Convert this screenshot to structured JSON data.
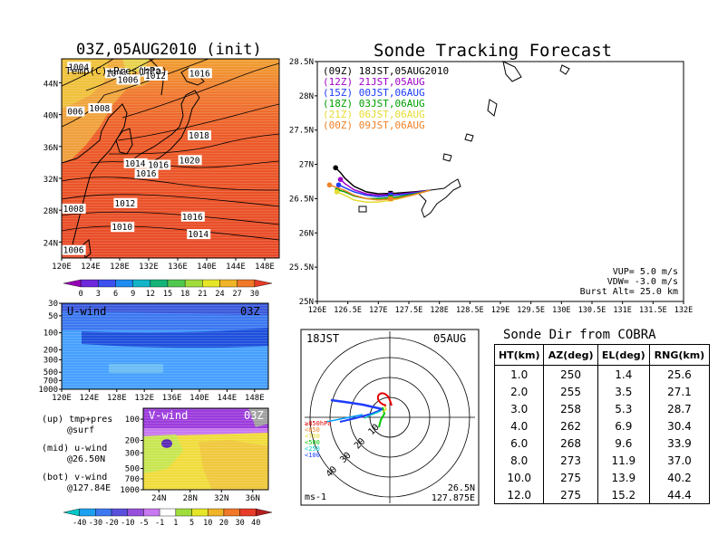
{
  "left_title": "03Z,05AUG2010 (init)",
  "right_title": "Sonde Tracking Forecast",
  "map_panel": {
    "label": "Temp(C)+Pres(hPa)",
    "lat_ticks": [
      "44N",
      "40N",
      "36N",
      "32N",
      "28N",
      "24N"
    ],
    "lon_ticks": [
      "120E",
      "124E",
      "128E",
      "132E",
      "136E",
      "140E",
      "144E",
      "148E"
    ],
    "pressure_labels": [
      {
        "text": "1004",
        "lon": 120.9,
        "lat": 45.6
      },
      {
        "text": "1004",
        "lon": 126.1,
        "lat": 44.8
      },
      {
        "text": "1006",
        "lon": 127.7,
        "lat": 44.0
      },
      {
        "text": "1010",
        "lon": 130.8,
        "lat": 45.0
      },
      {
        "text": "1012",
        "lon": 131.5,
        "lat": 44.5
      },
      {
        "text": "1016",
        "lon": 137.6,
        "lat": 44.8
      },
      {
        "text": "006",
        "lon": 120.8,
        "lat": 40.0
      },
      {
        "text": "1008",
        "lon": 123.8,
        "lat": 40.4
      },
      {
        "text": "1018",
        "lon": 137.5,
        "lat": 37.0
      },
      {
        "text": "1014",
        "lon": 128.7,
        "lat": 33.5
      },
      {
        "text": "1016",
        "lon": 131.9,
        "lat": 33.3
      },
      {
        "text": "1020",
        "lon": 136.2,
        "lat": 33.9
      },
      {
        "text": "1016",
        "lon": 130.2,
        "lat": 32.2
      },
      {
        "text": "1012",
        "lon": 127.3,
        "lat": 28.5
      },
      {
        "text": "1008",
        "lon": 120.2,
        "lat": 27.8
      },
      {
        "text": "1010",
        "lon": 126.9,
        "lat": 25.5
      },
      {
        "text": "1016",
        "lon": 136.6,
        "lat": 26.8
      },
      {
        "text": "1014",
        "lon": 137.4,
        "lat": 24.6
      },
      {
        "text": "1006",
        "lon": 120.2,
        "lat": 22.6
      }
    ]
  },
  "temp_colorbar": {
    "ticks": [
      "0",
      "3",
      "6",
      "9",
      "12",
      "15",
      "18",
      "21",
      "24",
      "27",
      "30"
    ]
  },
  "u_panel": {
    "label": "U-wind",
    "time": "03Z",
    "p_ticks": [
      "30",
      "50",
      "100",
      "200",
      "300",
      "500",
      "700",
      "1000"
    ],
    "lon_ticks": [
      "120E",
      "124E",
      "128E",
      "132E",
      "136E",
      "140E",
      "144E",
      "148E"
    ]
  },
  "v_panel": {
    "label": "V-wind",
    "time": "03Z",
    "p_ticks": [
      "100",
      "200",
      "300",
      "500",
      "700",
      "1000"
    ],
    "lat_ticks": [
      "24N",
      "28N",
      "32N",
      "36N"
    ]
  },
  "panel_notes": [
    {
      "line1": "(up) tmp+pres",
      "line2": "@surf"
    },
    {
      "line1": "(mid) u-wind",
      "line2": "@26.50N"
    },
    {
      "line1": "(bot) v-wind",
      "line2": "@127.84E"
    }
  ],
  "wind_colorbar": {
    "ticks": [
      "-40",
      "-30",
      "-20",
      "-10",
      "-5",
      "-1",
      "1",
      "5",
      "10",
      "20",
      "30",
      "40"
    ]
  },
  "track_panel": {
    "lat_ticks": [
      "28.5N",
      "28N",
      "27.5N",
      "27N",
      "26.5N",
      "26N",
      "25.5N",
      "25N"
    ],
    "lon_ticks": [
      "126E",
      "126.5E",
      "127E",
      "127.5E",
      "128E",
      "128.5E",
      "129E",
      "129.5E",
      "130E",
      "130.5E",
      "131E",
      "131.5E",
      "132E"
    ],
    "legend": [
      {
        "text": "(09Z)  18JST,05AUG2010",
        "color": "#000000"
      },
      {
        "text": "(12Z)  21JST,05AUG",
        "color": "#a000c8"
      },
      {
        "text": "(15Z)  00JST,06AUG",
        "color": "#1e3cff"
      },
      {
        "text": "(18Z)  03JST,06AUG",
        "color": "#00a000"
      },
      {
        "text": "(21Z)  06JST,06AUG",
        "color": "#e6dc32"
      },
      {
        "text": "(00Z)  09JST,06AUG",
        "color": "#f08228"
      }
    ],
    "params": [
      "VUP=  5.0  m/s",
      "VDW= -3.0  m/s",
      "Burst Alt=  25.0  km"
    ]
  },
  "polar_panel": {
    "time": "18JST",
    "date": "05AUG",
    "levels": [
      "≥850hPa",
      "<850",
      "<700",
      "<500",
      "<250",
      "<100"
    ],
    "level_colors": [
      "#e60000",
      "#f08228",
      "#e6dc32",
      "#00c800",
      "#00c8c8",
      "#1e3cff"
    ],
    "ring_labels": [
      "10",
      "20",
      "30",
      "40"
    ],
    "unit": "ms-1",
    "location_lat": "26.5N",
    "location_lon": "127.875E"
  },
  "direction_table": {
    "title": "Sonde Dir from COBRA",
    "headers": [
      "HT(km)",
      "AZ(deg)",
      "EL(deg)",
      "RNG(km)"
    ],
    "rows": [
      [
        "1.0",
        "250",
        "1.4",
        "25.6"
      ],
      [
        "2.0",
        "255",
        "3.5",
        "27.1"
      ],
      [
        "3.0",
        "258",
        "5.3",
        "28.7"
      ],
      [
        "4.0",
        "262",
        "6.9",
        "30.4"
      ],
      [
        "6.0",
        "268",
        "9.6",
        "33.9"
      ],
      [
        "8.0",
        "273",
        "11.9",
        "37.0"
      ],
      [
        "10.0",
        "275",
        "13.9",
        "40.2"
      ],
      [
        "12.0",
        "275",
        "15.2",
        "44.4"
      ]
    ]
  },
  "chart_data": [
    {
      "type": "heatmap",
      "panel": "surface",
      "quantity": "temperature",
      "xlim": [
        120,
        150
      ],
      "ylim": [
        22,
        47
      ]
    },
    {
      "type": "heatmap",
      "panel": "u-wind",
      "xlim": [
        120,
        150
      ]
    },
    {
      "type": "heatmap",
      "panel": "v-wind",
      "xlim": [
        22,
        38
      ]
    },
    {
      "type": "line",
      "panel": "sonde-tracks",
      "xlim": [
        126,
        132
      ],
      "ylim": [
        25,
        28.5
      ],
      "series": [
        {
          "name": "(09Z)  18JST,05AUG2010",
          "x": [
            127.84,
            127.6,
            127.3,
            127.0,
            126.8,
            126.6,
            126.45,
            126.38,
            126.3
          ],
          "y": [
            26.62,
            26.6,
            26.58,
            26.57,
            26.6,
            26.68,
            26.8,
            26.88,
            26.95
          ]
        },
        {
          "name": "(12Z)  21JST,05AUG",
          "x": [
            127.84,
            127.6,
            127.3,
            127.0,
            126.8,
            126.6,
            126.45,
            126.38
          ],
          "y": [
            26.62,
            26.59,
            26.56,
            26.55,
            26.57,
            26.63,
            26.72,
            26.78
          ]
        },
        {
          "name": "(15Z)  00JST,06AUG",
          "x": [
            127.84,
            127.6,
            127.3,
            127.0,
            126.8,
            126.6,
            126.45,
            126.35
          ],
          "y": [
            26.62,
            26.58,
            26.55,
            26.53,
            26.55,
            26.6,
            26.66,
            26.7
          ]
        },
        {
          "name": "(18Z)  03JST,06AUG",
          "x": [
            127.84,
            127.6,
            127.3,
            127.0,
            126.8,
            126.6,
            126.45,
            126.33
          ],
          "y": [
            26.62,
            26.57,
            26.52,
            26.5,
            26.5,
            26.54,
            26.6,
            26.63
          ]
        },
        {
          "name": "(21Z)  06JST,06AUG",
          "x": [
            127.84,
            127.6,
            127.3,
            127.0,
            126.8,
            126.6,
            126.45,
            126.32
          ],
          "y": [
            26.62,
            26.56,
            26.49,
            26.45,
            26.45,
            26.48,
            26.55,
            26.6
          ]
        },
        {
          "name": "(00Z)  09JST,06AUG",
          "x": [
            127.84,
            127.6,
            127.3,
            127.0,
            126.8,
            126.6,
            126.45,
            126.2
          ],
          "y": [
            26.62,
            26.56,
            26.5,
            26.48,
            26.5,
            26.55,
            26.62,
            26.7
          ]
        }
      ]
    },
    {
      "type": "table",
      "panel": "sonde-direction",
      "columns": [
        "HT(km)",
        "AZ(deg)",
        "EL(deg)",
        "RNG(km)"
      ],
      "rows": [
        [
          1.0,
          250,
          1.4,
          25.6
        ],
        [
          2.0,
          255,
          3.5,
          27.1
        ],
        [
          3.0,
          258,
          5.3,
          28.7
        ],
        [
          4.0,
          262,
          6.9,
          30.4
        ],
        [
          6.0,
          268,
          9.6,
          33.9
        ],
        [
          8.0,
          273,
          11.9,
          37.0
        ],
        [
          10.0,
          275,
          13.9,
          40.2
        ],
        [
          12.0,
          275,
          15.2,
          44.4
        ]
      ]
    }
  ]
}
